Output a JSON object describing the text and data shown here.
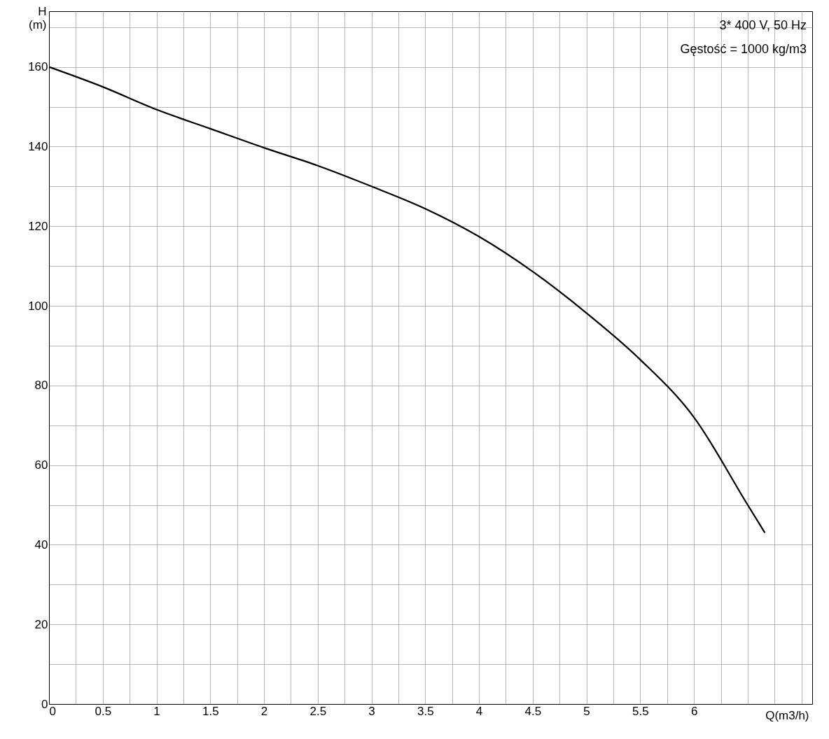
{
  "chart_data": {
    "type": "line",
    "xlabel": "Q(m3/h)",
    "ylabel": "H (m)",
    "x": [
      0,
      0.5,
      1,
      1.5,
      2,
      2.5,
      3,
      3.5,
      4,
      4.5,
      5,
      5.5,
      6,
      6.5,
      6.66
    ],
    "series": [
      {
        "color": "#000000",
        "values": [
          160,
          155,
          149.3,
          144.5,
          139.7,
          135.2,
          130,
          124.4,
          117.4,
          108.6,
          98.2,
          86.5,
          72,
          50,
          43
        ]
      }
    ],
    "xlim": [
      0,
      7.1
    ],
    "ylim": [
      0,
      174
    ],
    "xticks": [
      0,
      {
        "value": 0.25,
        "label": null
      },
      0.5,
      {
        "value": 0.75,
        "label": null
      },
      1,
      {
        "value": 1.25,
        "label": null
      },
      1.5,
      {
        "value": 1.75,
        "label": null
      },
      2,
      {
        "value": 2.25,
        "label": null
      },
      2.5,
      {
        "value": 2.75,
        "label": null
      },
      3,
      {
        "value": 3.25,
        "label": null
      },
      3.5,
      {
        "value": 3.75,
        "label": null
      },
      4,
      {
        "value": 4.25,
        "label": null
      },
      4.5,
      {
        "value": 4.75,
        "label": null
      },
      5,
      {
        "value": 5.25,
        "label": null
      },
      5.5,
      {
        "value": 5.75,
        "label": null
      },
      6,
      {
        "value": 6.25,
        "label": null
      },
      {
        "value": 6.5,
        "label": null
      },
      {
        "value": 6.75,
        "label": null
      },
      {
        "value": 7,
        "label": null
      }
    ],
    "yticks": [
      0,
      {
        "value": 10,
        "label": null
      },
      20,
      {
        "value": 30,
        "label": null
      },
      40,
      {
        "value": 50,
        "label": null
      },
      60,
      {
        "value": 70,
        "label": null
      },
      80,
      {
        "value": 90,
        "label": null
      },
      100,
      {
        "value": 110,
        "label": null
      },
      120,
      {
        "value": 130,
        "label": null
      },
      140,
      {
        "value": 150,
        "label": null
      },
      160,
      {
        "value": 170,
        "label": null
      }
    ],
    "grid": true,
    "marker": "none",
    "line_style": "solid",
    "annotations": [
      "3* 400 V, 50 Hz",
      "Gęstość = 1000 kg/m3"
    ]
  }
}
